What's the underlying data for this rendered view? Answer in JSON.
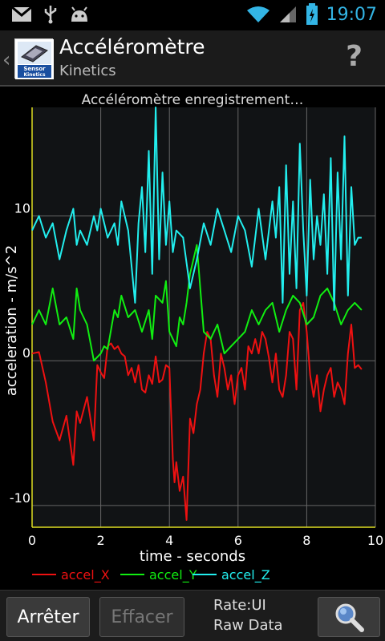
{
  "status_bar": {
    "time": "19:07",
    "left_icons": [
      "gmail-icon",
      "usb-icon",
      "android-debug-icon"
    ],
    "right_icons": [
      "wifi-icon",
      "signal-icon",
      "battery-icon"
    ]
  },
  "header": {
    "logo_text_top": "Sensor",
    "logo_text_bottom": "Kinetics",
    "title": "Accéléromètre",
    "subtitle": "Kinetics",
    "help_label": "?"
  },
  "chart_data": {
    "type": "line",
    "title": "Accéléromètre enregistrement…",
    "xlabel": "time - seconds",
    "ylabel": "acceleration - m/s^2",
    "xlim": [
      0,
      10
    ],
    "ylim": [
      -11.5,
      17.5
    ],
    "x_ticks": [
      "0",
      "2",
      "4",
      "6",
      "8",
      "10"
    ],
    "x_tick_values": [
      0,
      2,
      4,
      6,
      8,
      10
    ],
    "y_ticks": [
      "10",
      "0",
      "-10"
    ],
    "y_tick_values": [
      10,
      0,
      -10
    ],
    "grid": true,
    "legend_position": "bottom",
    "colors": {
      "accel_X": "#ee1111",
      "accel_Y": "#11ee11",
      "accel_Z": "#22eeee",
      "axis": "#dddd22"
    },
    "series": [
      {
        "name": "accel_X",
        "x": [
          0,
          0.2,
          0.4,
          0.6,
          0.8,
          1.0,
          1.2,
          1.3,
          1.4,
          1.6,
          1.8,
          1.9,
          2.0,
          2.1,
          2.2,
          2.3,
          2.4,
          2.5,
          2.6,
          2.7,
          2.8,
          2.9,
          3.0,
          3.1,
          3.2,
          3.3,
          3.4,
          3.5,
          3.6,
          3.7,
          3.8,
          3.9,
          4.0,
          4.1,
          4.15,
          4.2,
          4.3,
          4.4,
          4.5,
          4.6,
          4.7,
          4.8,
          4.9,
          5.0,
          5.1,
          5.2,
          5.3,
          5.4,
          5.5,
          5.6,
          5.7,
          5.8,
          5.9,
          6.0,
          6.1,
          6.2,
          6.3,
          6.4,
          6.5,
          6.6,
          6.7,
          6.8,
          6.9,
          7.0,
          7.1,
          7.2,
          7.3,
          7.4,
          7.5,
          7.6,
          7.7,
          7.8,
          7.9,
          8.0,
          8.1,
          8.2,
          8.3,
          8.4,
          8.5,
          8.6,
          8.7,
          8.8,
          8.9,
          9.0,
          9.1,
          9.2,
          9.3,
          9.4,
          9.5,
          9.6
        ],
        "values": [
          0.5,
          0.6,
          -1.5,
          -4.2,
          -5.5,
          -3.8,
          -7.2,
          -3.5,
          -4.3,
          -2.5,
          -5.5,
          -0.3,
          -0.8,
          -1.2,
          1.0,
          1.2,
          0.8,
          1.0,
          0.5,
          0.3,
          -1.0,
          -0.5,
          -1.5,
          -0.3,
          -2.0,
          -2.2,
          -1.0,
          -1.6,
          0.3,
          -1.5,
          -1.3,
          -0.3,
          -0.5,
          -6.8,
          -8.4,
          -7.0,
          -9.0,
          -8.0,
          -11.0,
          -4.0,
          -5.0,
          -3.0,
          -2.0,
          0.5,
          2.0,
          1.5,
          -1.0,
          -2.5,
          0.5,
          -0.5,
          -2.0,
          -1.0,
          -3.0,
          -1.0,
          -0.5,
          -2.0,
          1.0,
          0.5,
          1.5,
          0.5,
          2.0,
          1.5,
          0.2,
          -1.5,
          0.5,
          -2.0,
          -2.5,
          -1.0,
          2.0,
          1.5,
          -2.0,
          3.5,
          4.0,
          2.0,
          -1.0,
          -2.5,
          -1.0,
          -3.5,
          -2.0,
          -1.0,
          -0.5,
          -2.5,
          -1.5,
          -2.0,
          -3.0,
          0.5,
          2.5,
          -0.5,
          -0.3,
          -0.6
        ]
      },
      {
        "name": "accel_Y",
        "x": [
          0,
          0.2,
          0.4,
          0.6,
          0.8,
          1.0,
          1.2,
          1.3,
          1.4,
          1.6,
          1.8,
          2.0,
          2.1,
          2.2,
          2.4,
          2.5,
          2.6,
          2.8,
          3.0,
          3.2,
          3.4,
          3.5,
          3.6,
          3.8,
          3.9,
          4.0,
          4.2,
          4.3,
          4.4,
          4.5,
          4.6,
          4.7,
          4.8,
          4.9,
          5.0,
          5.2,
          5.4,
          5.6,
          5.8,
          6.0,
          6.2,
          6.4,
          6.6,
          6.8,
          7.0,
          7.2,
          7.4,
          7.6,
          7.8,
          8.0,
          8.2,
          8.4,
          8.6,
          8.8,
          9.0,
          9.2,
          9.4,
          9.6
        ],
        "values": [
          2.5,
          3.5,
          2.5,
          5.0,
          2.5,
          3.0,
          1.5,
          5.0,
          3.5,
          2.5,
          0.0,
          0.5,
          1.0,
          0.8,
          3.5,
          3.0,
          4.5,
          3.0,
          3.5,
          2.0,
          3.5,
          1.5,
          4.5,
          4.0,
          5.5,
          2.0,
          1.0,
          3.0,
          2.5,
          4.0,
          6.0,
          7.0,
          8.0,
          5.0,
          2.0,
          1.5,
          2.5,
          0.5,
          1.0,
          1.5,
          2.0,
          3.5,
          2.5,
          3.5,
          4.0,
          2.0,
          3.5,
          4.5,
          4.0,
          2.5,
          3.0,
          4.5,
          5.0,
          4.0,
          2.5,
          3.5,
          4.0,
          3.5
        ]
      },
      {
        "name": "accel_Z",
        "x": [
          0,
          0.2,
          0.4,
          0.6,
          0.8,
          1.0,
          1.2,
          1.3,
          1.4,
          1.6,
          1.8,
          1.9,
          2.0,
          2.2,
          2.4,
          2.5,
          2.6,
          2.8,
          3.0,
          3.1,
          3.2,
          3.3,
          3.4,
          3.5,
          3.6,
          3.7,
          3.8,
          3.9,
          4.0,
          4.1,
          4.2,
          4.4,
          4.6,
          4.8,
          5.0,
          5.2,
          5.4,
          5.6,
          5.8,
          6.0,
          6.2,
          6.4,
          6.6,
          6.8,
          7.0,
          7.1,
          7.2,
          7.3,
          7.4,
          7.5,
          7.6,
          7.7,
          7.8,
          7.9,
          8.0,
          8.1,
          8.2,
          8.3,
          8.4,
          8.5,
          8.6,
          8.7,
          8.8,
          8.9,
          9.0,
          9.1,
          9.2,
          9.3,
          9.4,
          9.5,
          9.6
        ],
        "values": [
          9.0,
          10.0,
          8.5,
          9.5,
          7.0,
          9.0,
          10.5,
          8.0,
          9.0,
          8.0,
          10.0,
          9.0,
          10.5,
          8.5,
          9.5,
          8.0,
          11.0,
          9.0,
          4.0,
          9.5,
          12.0,
          7.5,
          14.5,
          6.0,
          17.5,
          7.0,
          13.0,
          8.0,
          11.0,
          7.5,
          9.0,
          8.5,
          5.0,
          7.0,
          9.5,
          8.0,
          10.5,
          9.0,
          7.5,
          10.0,
          9.0,
          6.5,
          10.5,
          7.0,
          11.0,
          8.5,
          12.0,
          4.0,
          13.5,
          6.0,
          11.0,
          5.0,
          15.0,
          9.0,
          4.5,
          12.5,
          7.0,
          10.0,
          8.0,
          11.5,
          6.0,
          14.0,
          3.5,
          13.0,
          7.0,
          15.5,
          4.5,
          12.0,
          8.0,
          8.5,
          8.5
        ]
      }
    ]
  },
  "bottom_bar": {
    "stop_label": "Arrêter",
    "clear_label": "Effacer",
    "rate_label": "Rate:UI",
    "mode_label": "Raw Data",
    "zoom_icon": "magnifier-icon"
  }
}
